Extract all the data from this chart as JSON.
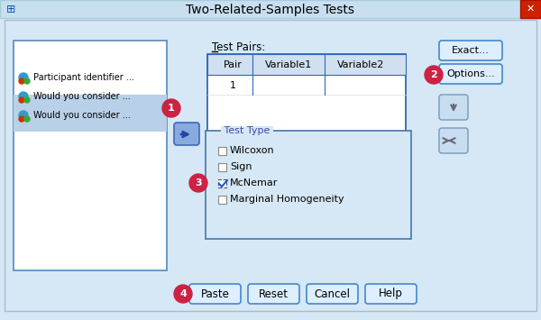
{
  "title": "Two-Related-Samples Tests",
  "bg_color": "#d6e8f5",
  "dialog_bg": "#d6e8f5",
  "title_bar_bg": "#e8f4fb",
  "title_color": "#000000",
  "close_btn_color": "#cc0000",
  "list_items": [
    "Participant identifier ...",
    "Would you consider ...",
    "Would you consider ..."
  ],
  "test_pairs_label": "Test Pairs:",
  "pair_headers": [
    "Pair",
    "Variable1",
    "Variable2"
  ],
  "pair_row": "1",
  "exact_btn": "Exact...",
  "options_btn": "Options...",
  "test_type_label": "Test Type",
  "checkboxes": [
    "Wilcoxon",
    "Sign",
    "McNemar",
    "Marginal Homogeneity"
  ],
  "checked": [
    false,
    false,
    true,
    false
  ],
  "mcnemar_dotted": true,
  "bottom_btns": [
    "Paste",
    "Reset",
    "Cancel",
    "Help"
  ],
  "circle_labels": [
    "1",
    "2",
    "3",
    "4"
  ],
  "btn_face": "#ddeeff",
  "btn_border": "#4488cc",
  "table_bg": "#ffffff",
  "panel_border": "#4488cc",
  "arrow_color": "#5566cc"
}
